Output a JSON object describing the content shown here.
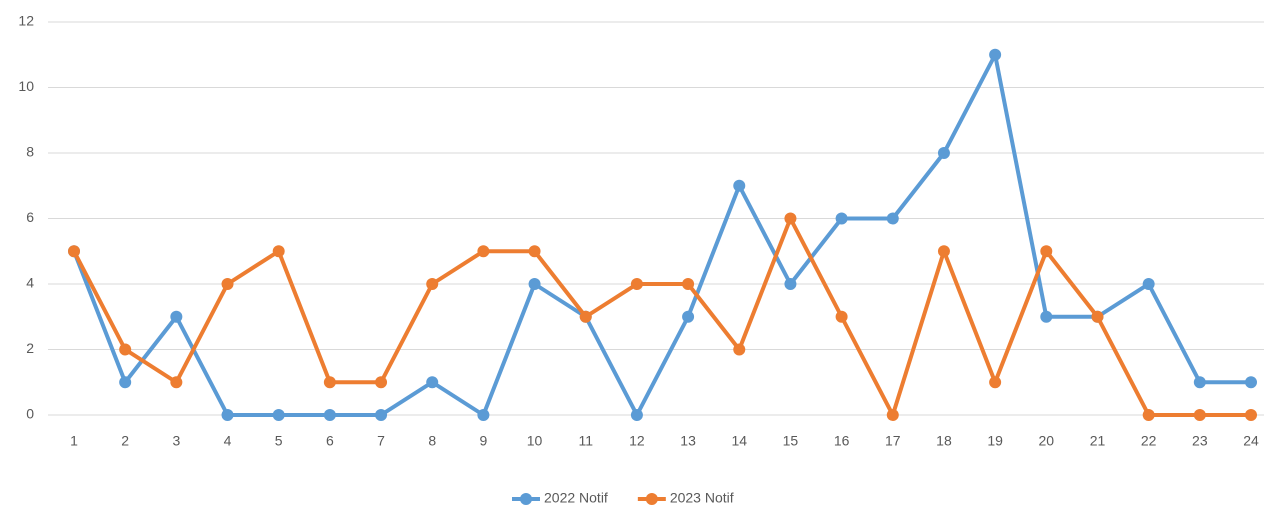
{
  "chart_data": {
    "type": "line",
    "categories": [
      "1",
      "2",
      "3",
      "4",
      "5",
      "6",
      "7",
      "8",
      "9",
      "10",
      "11",
      "12",
      "13",
      "14",
      "15",
      "16",
      "17",
      "18",
      "19",
      "20",
      "21",
      "22",
      "23",
      "24"
    ],
    "series": [
      {
        "name": "2022 Notif",
        "color": "#5b9bd5",
        "values": [
          5,
          1,
          3,
          0,
          0,
          0,
          0,
          1,
          0,
          4,
          3,
          0,
          3,
          7,
          4,
          6,
          6,
          8,
          11,
          3,
          3,
          4,
          1,
          1
        ]
      },
      {
        "name": "2023 Notif",
        "color": "#ed7d31",
        "values": [
          5,
          2,
          1,
          4,
          5,
          1,
          1,
          4,
          5,
          5,
          3,
          4,
          4,
          2,
          6,
          3,
          0,
          5,
          1,
          5,
          3,
          0,
          0,
          0
        ]
      }
    ],
    "ylim": [
      0,
      12
    ],
    "yticks": [
      0,
      2,
      4,
      6,
      8,
      10,
      12
    ],
    "grid": true,
    "legend": "bottom"
  }
}
